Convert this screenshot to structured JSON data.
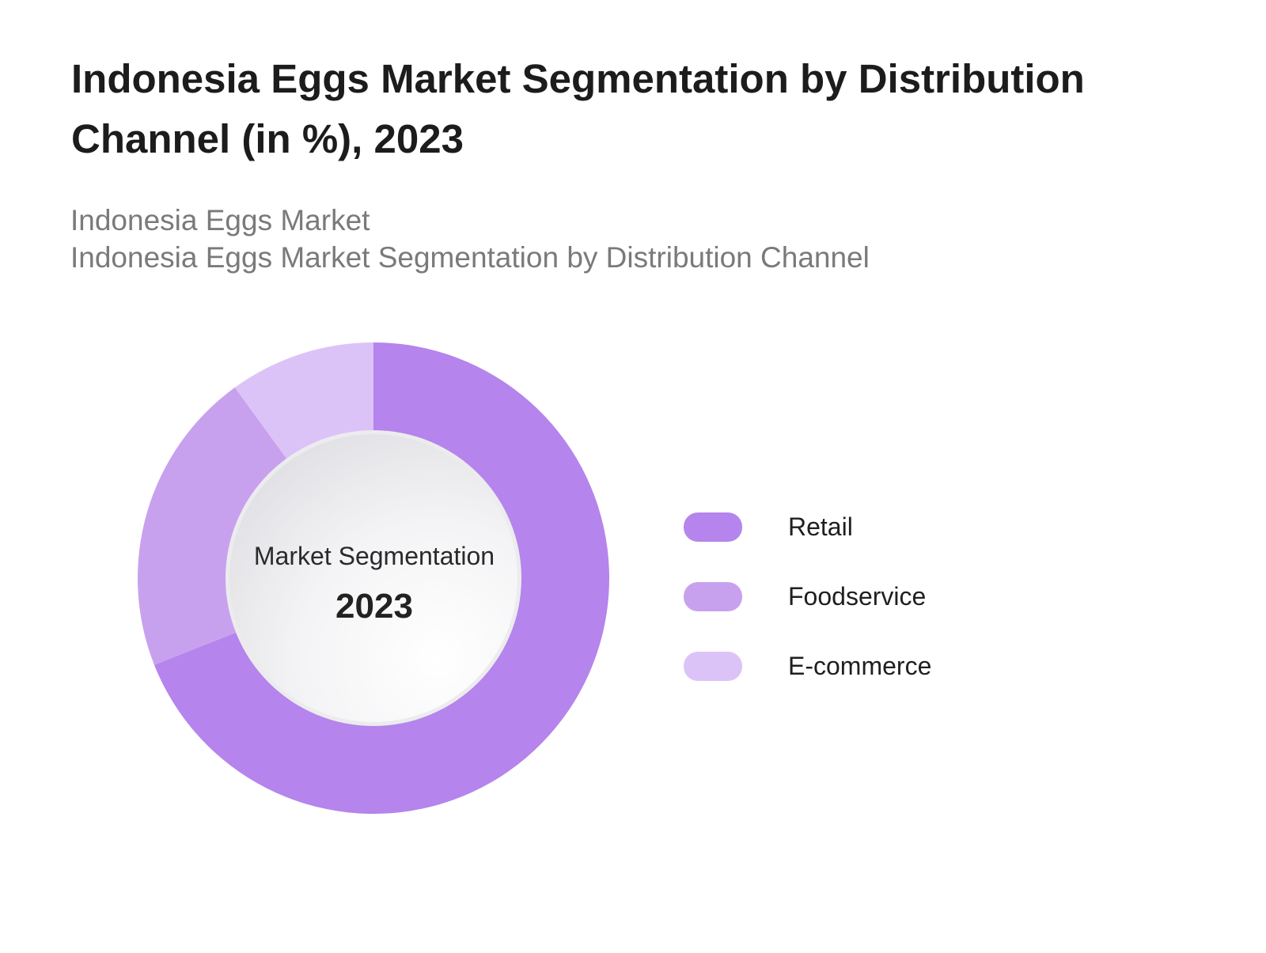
{
  "chart_data": {
    "type": "pie",
    "variant": "donut",
    "title": "Indonesia Eggs Market Segmentation by Distribution Channel (in %), 2023",
    "subtitle_lines": [
      "Indonesia Eggs Market",
      "Indonesia Eggs Market Segmentation by Distribution Channel"
    ],
    "center_label": "Market Segmentation",
    "center_year": "2023",
    "legend_position": "right",
    "categories": [
      "Retail",
      "Foodservice",
      "E-commerce"
    ],
    "values": [
      69,
      21,
      10
    ],
    "colors": [
      "#b584ec",
      "#c8a1ee",
      "#dcc3f7"
    ]
  }
}
